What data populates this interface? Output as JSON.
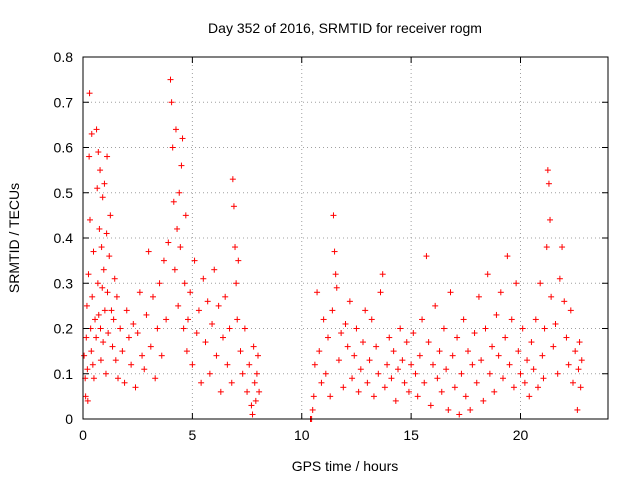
{
  "chart_data": {
    "type": "scatter",
    "title": "Day 352 of 2016, SRMTID for receiver rogm",
    "xlabel": "GPS time / hours",
    "ylabel": "SRMTID / TECUs",
    "xlim": [
      0,
      24
    ],
    "ylim": [
      0,
      0.8
    ],
    "xticks": [
      0,
      5,
      10,
      15,
      20
    ],
    "yticks": [
      0,
      0.1,
      0.2,
      0.3,
      0.4,
      0.5,
      0.6,
      0.7,
      0.8
    ],
    "xtick_labels": [
      "0",
      "5",
      "10",
      "15",
      "20"
    ],
    "ytick_labels": [
      "0",
      "0.1",
      "0.2",
      "0.3",
      "0.4",
      "0.5",
      "0.6",
      "0.7",
      "0.8"
    ],
    "grid": true,
    "marker": "plus",
    "marker_color": "#ff0000",
    "series": [
      {
        "name": "SRMTID",
        "points": [
          [
            0.05,
            0.14
          ],
          [
            0.1,
            0.09
          ],
          [
            0.12,
            0.05
          ],
          [
            0.15,
            0.18
          ],
          [
            0.18,
            0.25
          ],
          [
            0.2,
            0.11
          ],
          [
            0.22,
            0.04
          ],
          [
            0.25,
            0.32
          ],
          [
            0.28,
            0.58
          ],
          [
            0.3,
            0.72
          ],
          [
            0.32,
            0.44
          ],
          [
            0.35,
            0.2
          ],
          [
            0.38,
            0.15
          ],
          [
            0.4,
            0.63
          ],
          [
            0.42,
            0.27
          ],
          [
            0.45,
            0.12
          ],
          [
            0.48,
            0.37
          ],
          [
            0.5,
            0.09
          ],
          [
            0.55,
            0.22
          ],
          [
            0.6,
            0.18
          ],
          [
            0.62,
            0.64
          ],
          [
            0.65,
            0.51
          ],
          [
            0.68,
            0.3
          ],
          [
            0.7,
            0.59
          ],
          [
            0.72,
            0.23
          ],
          [
            0.75,
            0.42
          ],
          [
            0.78,
            0.55
          ],
          [
            0.8,
            0.2
          ],
          [
            0.82,
            0.13
          ],
          [
            0.85,
            0.38
          ],
          [
            0.88,
            0.29
          ],
          [
            0.9,
            0.49
          ],
          [
            0.92,
            0.17
          ],
          [
            0.95,
            0.33
          ],
          [
            0.98,
            0.52
          ],
          [
            1.0,
            0.24
          ],
          [
            1.05,
            0.1
          ],
          [
            1.08,
            0.41
          ],
          [
            1.1,
            0.58
          ],
          [
            1.12,
            0.28
          ],
          [
            1.15,
            0.19
          ],
          [
            1.2,
            0.36
          ],
          [
            1.25,
            0.45
          ],
          [
            1.3,
            0.24
          ],
          [
            1.35,
            0.16
          ],
          [
            1.4,
            0.22
          ],
          [
            1.45,
            0.31
          ],
          [
            1.5,
            0.13
          ],
          [
            1.55,
            0.27
          ],
          [
            1.6,
            0.09
          ],
          [
            1.7,
            0.2
          ],
          [
            1.8,
            0.15
          ],
          [
            1.9,
            0.08
          ],
          [
            2.0,
            0.24
          ],
          [
            2.1,
            0.18
          ],
          [
            2.2,
            0.12
          ],
          [
            2.3,
            0.21
          ],
          [
            2.4,
            0.07
          ],
          [
            2.5,
            0.19
          ],
          [
            2.6,
            0.28
          ],
          [
            2.7,
            0.14
          ],
          [
            2.8,
            0.11
          ],
          [
            2.9,
            0.23
          ],
          [
            3.0,
            0.37
          ],
          [
            3.1,
            0.16
          ],
          [
            3.2,
            0.27
          ],
          [
            3.3,
            0.09
          ],
          [
            3.4,
            0.2
          ],
          [
            3.5,
            0.3
          ],
          [
            3.6,
            0.14
          ],
          [
            3.7,
            0.35
          ],
          [
            3.8,
            0.22
          ],
          [
            3.9,
            0.39
          ],
          [
            4.0,
            0.75
          ],
          [
            4.05,
            0.7
          ],
          [
            4.1,
            0.6
          ],
          [
            4.15,
            0.48
          ],
          [
            4.2,
            0.33
          ],
          [
            4.25,
            0.64
          ],
          [
            4.3,
            0.42
          ],
          [
            4.35,
            0.25
          ],
          [
            4.4,
            0.5
          ],
          [
            4.45,
            0.38
          ],
          [
            4.5,
            0.56
          ],
          [
            4.55,
            0.62
          ],
          [
            4.6,
            0.2
          ],
          [
            4.65,
            0.3
          ],
          [
            4.7,
            0.45
          ],
          [
            4.75,
            0.15
          ],
          [
            4.8,
            0.22
          ],
          [
            4.9,
            0.28
          ],
          [
            5.0,
            0.12
          ],
          [
            5.1,
            0.35
          ],
          [
            5.2,
            0.19
          ],
          [
            5.3,
            0.24
          ],
          [
            5.4,
            0.08
          ],
          [
            5.5,
            0.31
          ],
          [
            5.6,
            0.17
          ],
          [
            5.7,
            0.26
          ],
          [
            5.8,
            0.1
          ],
          [
            5.9,
            0.21
          ],
          [
            6.0,
            0.33
          ],
          [
            6.1,
            0.14
          ],
          [
            6.2,
            0.25
          ],
          [
            6.3,
            0.06
          ],
          [
            6.4,
            0.18
          ],
          [
            6.5,
            0.27
          ],
          [
            6.6,
            0.12
          ],
          [
            6.7,
            0.2
          ],
          [
            6.8,
            0.08
          ],
          [
            6.85,
            0.53
          ],
          [
            6.9,
            0.47
          ],
          [
            6.95,
            0.38
          ],
          [
            7.0,
            0.3
          ],
          [
            7.05,
            0.22
          ],
          [
            7.1,
            0.35
          ],
          [
            7.2,
            0.15
          ],
          [
            7.3,
            0.1
          ],
          [
            7.4,
            0.2
          ],
          [
            7.5,
            0.06
          ],
          [
            7.6,
            0.12
          ],
          [
            7.7,
            0.03
          ],
          [
            7.75,
            0.01
          ],
          [
            7.8,
            0.16
          ],
          [
            7.85,
            0.08
          ],
          [
            7.9,
            0.04
          ],
          [
            7.95,
            0.1
          ],
          [
            8.0,
            0.14
          ],
          [
            8.05,
            0.06
          ],
          [
            10.4,
            0.0
          ],
          [
            10.45,
            0.0
          ],
          [
            10.5,
            0.02
          ],
          [
            10.55,
            0.05
          ],
          [
            10.6,
            0.12
          ],
          [
            10.7,
            0.28
          ],
          [
            10.8,
            0.15
          ],
          [
            10.9,
            0.08
          ],
          [
            11.0,
            0.22
          ],
          [
            11.1,
            0.1
          ],
          [
            11.2,
            0.18
          ],
          [
            11.3,
            0.05
          ],
          [
            11.4,
            0.24
          ],
          [
            11.45,
            0.45
          ],
          [
            11.5,
            0.37
          ],
          [
            11.55,
            0.32
          ],
          [
            11.6,
            0.29
          ],
          [
            11.7,
            0.13
          ],
          [
            11.8,
            0.19
          ],
          [
            11.9,
            0.07
          ],
          [
            12.0,
            0.21
          ],
          [
            12.1,
            0.16
          ],
          [
            12.2,
            0.26
          ],
          [
            12.3,
            0.09
          ],
          [
            12.4,
            0.14
          ],
          [
            12.5,
            0.2
          ],
          [
            12.6,
            0.06
          ],
          [
            12.7,
            0.11
          ],
          [
            12.8,
            0.17
          ],
          [
            12.9,
            0.24
          ],
          [
            13.0,
            0.08
          ],
          [
            13.1,
            0.13
          ],
          [
            13.2,
            0.22
          ],
          [
            13.3,
            0.05
          ],
          [
            13.4,
            0.16
          ],
          [
            13.5,
            0.1
          ],
          [
            13.6,
            0.28
          ],
          [
            13.7,
            0.32
          ],
          [
            13.8,
            0.07
          ],
          [
            13.9,
            0.12
          ],
          [
            14.0,
            0.18
          ],
          [
            14.1,
            0.09
          ],
          [
            14.2,
            0.15
          ],
          [
            14.3,
            0.04
          ],
          [
            14.4,
            0.11
          ],
          [
            14.5,
            0.2
          ],
          [
            14.6,
            0.13
          ],
          [
            14.7,
            0.08
          ],
          [
            14.8,
            0.17
          ],
          [
            14.9,
            0.06
          ],
          [
            15.0,
            0.12
          ],
          [
            15.1,
            0.19
          ],
          [
            15.2,
            0.1
          ],
          [
            15.3,
            0.05
          ],
          [
            15.4,
            0.14
          ],
          [
            15.5,
            0.22
          ],
          [
            15.6,
            0.08
          ],
          [
            15.7,
            0.36
          ],
          [
            15.8,
            0.17
          ],
          [
            15.9,
            0.03
          ],
          [
            16.0,
            0.12
          ],
          [
            16.1,
            0.25
          ],
          [
            16.2,
            0.09
          ],
          [
            16.3,
            0.15
          ],
          [
            16.4,
            0.06
          ],
          [
            16.5,
            0.2
          ],
          [
            16.6,
            0.11
          ],
          [
            16.7,
            0.02
          ],
          [
            16.8,
            0.28
          ],
          [
            16.9,
            0.14
          ],
          [
            17.0,
            0.07
          ],
          [
            17.1,
            0.18
          ],
          [
            17.2,
            0.01
          ],
          [
            17.3,
            0.1
          ],
          [
            17.4,
            0.22
          ],
          [
            17.5,
            0.05
          ],
          [
            17.6,
            0.15
          ],
          [
            17.7,
            0.02
          ],
          [
            17.8,
            0.12
          ],
          [
            17.9,
            0.19
          ],
          [
            18.0,
            0.08
          ],
          [
            18.1,
            0.27
          ],
          [
            18.2,
            0.13
          ],
          [
            18.3,
            0.04
          ],
          [
            18.4,
            0.2
          ],
          [
            18.5,
            0.32
          ],
          [
            18.6,
            0.1
          ],
          [
            18.7,
            0.16
          ],
          [
            18.8,
            0.06
          ],
          [
            18.9,
            0.23
          ],
          [
            19.0,
            0.14
          ],
          [
            19.1,
            0.28
          ],
          [
            19.2,
            0.09
          ],
          [
            19.3,
            0.18
          ],
          [
            19.4,
            0.36
          ],
          [
            19.5,
            0.12
          ],
          [
            19.6,
            0.22
          ],
          [
            19.7,
            0.07
          ],
          [
            19.8,
            0.3
          ],
          [
            19.9,
            0.15
          ],
          [
            20.0,
            0.1
          ],
          [
            20.1,
            0.2
          ],
          [
            20.2,
            0.08
          ],
          [
            20.3,
            0.13
          ],
          [
            20.4,
            0.05
          ],
          [
            20.5,
            0.17
          ],
          [
            20.6,
            0.11
          ],
          [
            20.7,
            0.22
          ],
          [
            20.8,
            0.07
          ],
          [
            20.9,
            0.3
          ],
          [
            21.0,
            0.14
          ],
          [
            21.05,
            0.09
          ],
          [
            21.1,
            0.2
          ],
          [
            21.2,
            0.38
          ],
          [
            21.25,
            0.55
          ],
          [
            21.3,
            0.52
          ],
          [
            21.35,
            0.44
          ],
          [
            21.4,
            0.27
          ],
          [
            21.5,
            0.16
          ],
          [
            21.6,
            0.21
          ],
          [
            21.7,
            0.1
          ],
          [
            21.8,
            0.31
          ],
          [
            21.9,
            0.38
          ],
          [
            22.0,
            0.26
          ],
          [
            22.1,
            0.18
          ],
          [
            22.2,
            0.12
          ],
          [
            22.3,
            0.24
          ],
          [
            22.4,
            0.08
          ],
          [
            22.5,
            0.15
          ],
          [
            22.6,
            0.02
          ],
          [
            22.65,
            0.11
          ],
          [
            22.7,
            0.17
          ],
          [
            22.75,
            0.07
          ],
          [
            22.8,
            0.13
          ]
        ]
      }
    ]
  }
}
